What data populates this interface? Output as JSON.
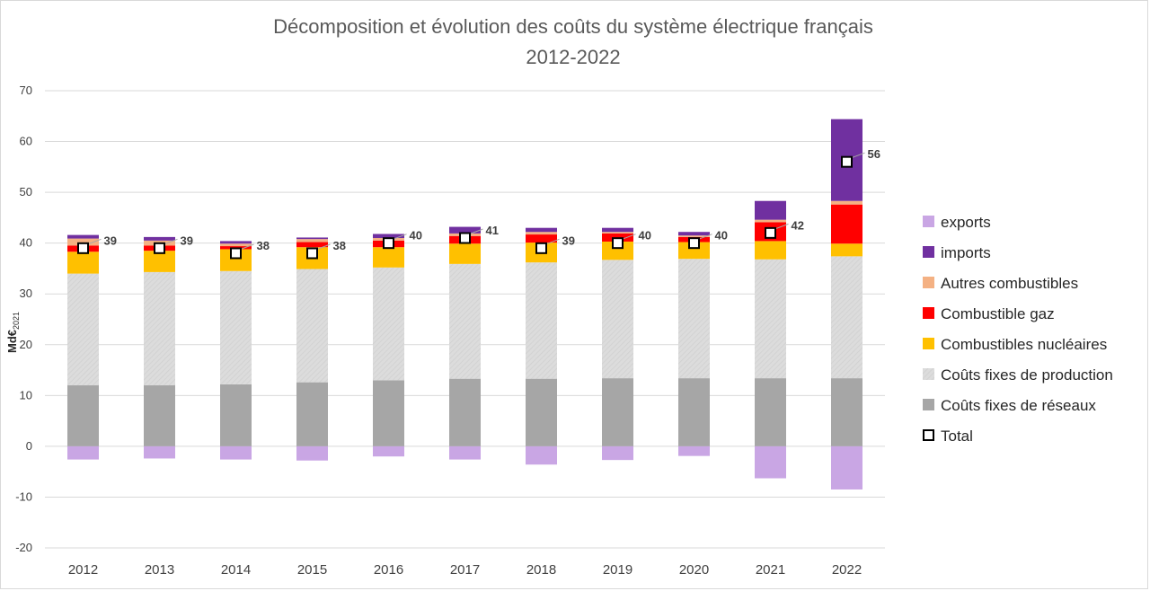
{
  "chart_data": {
    "type": "bar",
    "stacked": true,
    "title": "Décomposition et évolution des coûts du système électrique français",
    "subtitle": "2012-2022",
    "ylabel_main": "Md€",
    "ylabel_sub": "2021",
    "ylim": [
      -20,
      70
    ],
    "yticks": [
      -20,
      -10,
      0,
      10,
      20,
      30,
      40,
      50,
      60,
      70
    ],
    "grid": true,
    "legend_position": "right",
    "categories": [
      "2012",
      "2013",
      "2014",
      "2015",
      "2016",
      "2017",
      "2018",
      "2019",
      "2020",
      "2021",
      "2022"
    ],
    "series": [
      {
        "name": "Coûts fixes de réseaux",
        "color": "#a6a6a6",
        "values": [
          12,
          12,
          12.2,
          12.6,
          13,
          13.3,
          13.3,
          13.4,
          13.4,
          13.4,
          13.4
        ]
      },
      {
        "name": "Coûts fixes de production",
        "color": "#d9d9d9",
        "values": [
          22,
          22.3,
          22.3,
          22.3,
          22.2,
          22.6,
          22.9,
          23.3,
          23.5,
          23.4,
          24
        ]
      },
      {
        "name": "Combustibles nucléaires",
        "color": "#ffc000",
        "values": [
          4.3,
          4.2,
          4.3,
          4.3,
          4.0,
          4.0,
          3.9,
          3.6,
          3.3,
          3.6,
          2.5
        ]
      },
      {
        "name": "Combustible gaz",
        "color": "#ff0000",
        "values": [
          1.2,
          1.0,
          0.6,
          1.0,
          1.3,
          1.5,
          1.6,
          1.6,
          1.0,
          3.7,
          7.7
        ]
      },
      {
        "name": "Autres combustibles",
        "color": "#f4b183",
        "values": [
          1.4,
          1.0,
          0.5,
          0.6,
          0.5,
          0.5,
          0.5,
          0.3,
          0.3,
          0.5,
          0.7
        ]
      },
      {
        "name": "imports",
        "color": "#7030a0",
        "values": [
          0.7,
          0.7,
          0.5,
          0.3,
          0.8,
          1.3,
          0.8,
          0.8,
          0.7,
          3.7,
          16.1
        ]
      },
      {
        "name": "exports",
        "color": "#c9a6e4",
        "values": [
          -2.6,
          -2.4,
          -2.6,
          -2.8,
          -2.0,
          -2.6,
          -3.6,
          -2.7,
          -1.9,
          -6.3,
          -8.5
        ]
      }
    ],
    "total": {
      "name": "Total",
      "values": [
        39,
        39,
        38,
        38,
        40,
        41,
        39,
        40,
        40,
        42,
        56
      ]
    },
    "legend_order": [
      "exports",
      "imports",
      "Autres combustibles",
      "Combustible gaz",
      "Combustibles nucléaires",
      "Coûts fixes de production",
      "Coûts fixes de réseaux",
      "Total"
    ]
  }
}
